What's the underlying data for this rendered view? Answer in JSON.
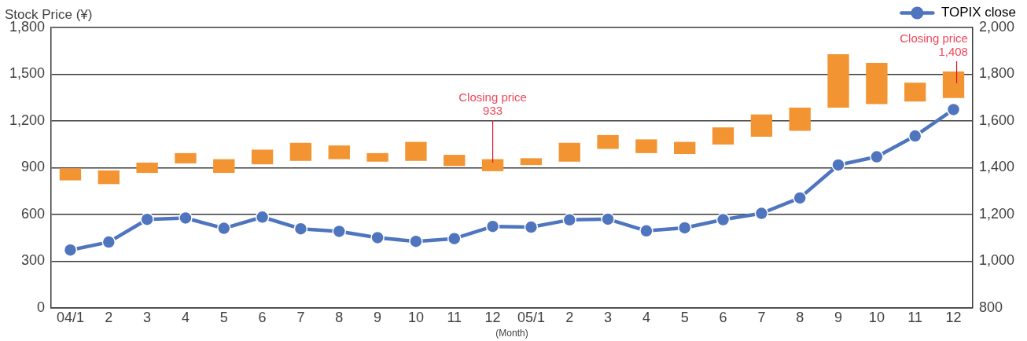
{
  "chart_data": {
    "type": "bar",
    "categories": [
      "04/1",
      "2",
      "3",
      "4",
      "5",
      "6",
      "7",
      "8",
      "9",
      "10",
      "11",
      "12",
      "05/1",
      "2",
      "3",
      "4",
      "5",
      "6",
      "7",
      "8",
      "9",
      "10",
      "11",
      "12"
    ],
    "series": [
      {
        "color": "#f39433",
        "base": [
          819,
          795,
          867,
          928,
          867,
          922,
          944,
          955,
          939,
          944,
          911,
          878,
          917,
          939,
          1021,
          994,
          988,
          1049,
          1099,
          1137,
          1286,
          1308,
          1325,
          1347
        ],
        "values": [
          77,
          88,
          66,
          66,
          88,
          94,
          116,
          88,
          55,
          122,
          72,
          77,
          44,
          121,
          89,
          88,
          78,
          110,
          143,
          149,
          343,
          265,
          121,
          171
        ]
      },
      {
        "type": "line",
        "name": "TOPIX close",
        "axis": "y2",
        "marker": "circle",
        "color": "#4f75bf",
        "values": [
          1048,
          1082,
          1179,
          1185,
          1141,
          1189,
          1139,
          1128,
          1101,
          1085,
          1097,
          1149,
          1146,
          1177,
          1180,
          1130,
          1143,
          1178,
          1205,
          1271,
          1412,
          1447,
          1536,
          1649
        ]
      }
    ],
    "ylabel": "Stock Price (¥)",
    "xlabel": "(Month)",
    "ylim": [
      0,
      1800
    ],
    "yticks": [
      0,
      300,
      600,
      900,
      {
        "value": 1200,
        "label": "1,200"
      },
      {
        "value": 1500,
        "label": "1,500"
      },
      {
        "value": 1800,
        "label": "1,800"
      }
    ],
    "y2lim": [
      800,
      2000
    ],
    "y2ticks": [
      800,
      {
        "value": 1000,
        "label": "1,000"
      },
      {
        "value": 1200,
        "label": "1,200"
      },
      {
        "value": 1400,
        "label": "1,400"
      },
      {
        "value": 1600,
        "label": "1,600"
      },
      {
        "value": 1800,
        "label": "1,800"
      },
      {
        "value": 2000,
        "label": "2,000"
      }
    ],
    "grid": "y",
    "legend": "top right",
    "annotations": [
      {
        "text": "Closing price\n933",
        "x": "12",
        "y": 933
      },
      "Closing price\n1,408"
    ]
  }
}
